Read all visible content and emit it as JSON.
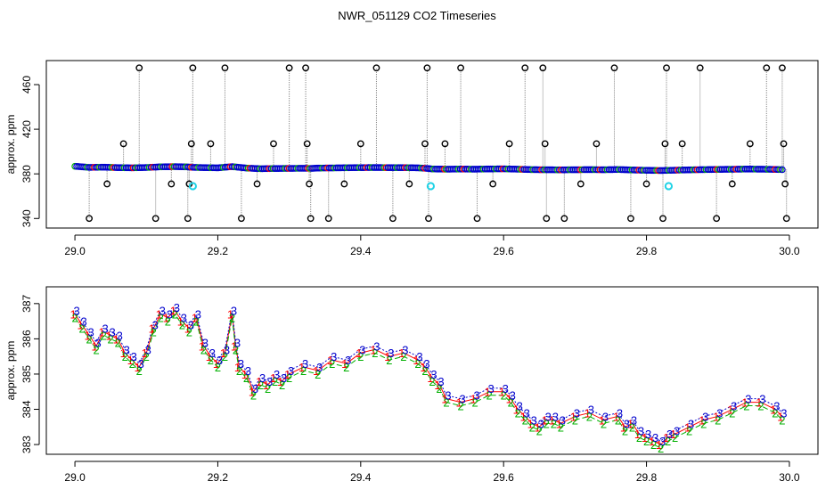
{
  "figure": {
    "title": "NWR_051129  CO2 Timeseries"
  },
  "colors": {
    "outlier": "#000000",
    "flag": "#22d3e6",
    "series1": "#ff0000",
    "series2": "#00b000",
    "series3": "#0000cc",
    "vline": "#888888"
  },
  "chart_data": [
    {
      "type": "scatter",
      "panel": "top",
      "title": "",
      "xlabel": "",
      "ylabel": "approx. ppm",
      "xlim": [
        29.0,
        30.0
      ],
      "ylim": [
        337,
        476
      ],
      "xticks": [
        29.0,
        29.2,
        29.4,
        29.6,
        29.8,
        30.0
      ],
      "xtick_labels": [
        "29.0",
        "29.2",
        "29.4",
        "29.6",
        "29.8",
        "30.0"
      ],
      "yticks": [
        340,
        380,
        420,
        460
      ],
      "ytick_labels": [
        "340",
        "380",
        "420",
        "460"
      ],
      "grid": false,
      "baseline_series": {
        "marker": "o",
        "x": [
          29.0,
          29.02,
          29.04,
          29.06,
          29.08,
          29.1,
          29.12,
          29.14,
          29.16,
          29.162,
          29.18,
          29.2,
          29.22,
          29.24,
          29.26,
          29.28,
          29.3,
          29.32,
          29.332,
          29.34,
          29.36,
          29.38,
          29.4,
          29.42,
          29.44,
          29.46,
          29.48,
          29.495,
          29.5,
          29.52,
          29.54,
          29.56,
          29.58,
          29.6,
          29.62,
          29.64,
          29.655,
          29.66,
          29.68,
          29.7,
          29.72,
          29.74,
          29.76,
          29.78,
          29.8,
          29.82,
          29.828,
          29.84,
          29.86,
          29.88,
          29.9,
          29.92,
          29.94,
          29.96,
          29.98,
          29.99
        ],
        "y": [
          386.8,
          385.8,
          386.0,
          385.6,
          385.4,
          385.7,
          386.3,
          386.5,
          386.2,
          385.9,
          385.6,
          385.4,
          386.5,
          385.2,
          384.6,
          384.8,
          384.9,
          385.0,
          384.9,
          385.2,
          385.3,
          385.5,
          385.6,
          385.7,
          385.6,
          385.6,
          385.4,
          384.8,
          384.4,
          384.2,
          384.3,
          384.2,
          384.4,
          384.5,
          384.2,
          383.8,
          383.7,
          383.7,
          383.6,
          383.7,
          383.8,
          383.7,
          383.9,
          383.5,
          383.2,
          383.0,
          383.1,
          383.3,
          383.6,
          383.8,
          384.0,
          384.1,
          384.3,
          384.2,
          384.0,
          383.8
        ]
      },
      "outliers": {
        "marker": "o",
        "x": [
          29.02,
          29.045,
          29.068,
          29.09,
          29.113,
          29.135,
          29.158,
          29.16,
          29.163,
          29.165,
          29.19,
          29.21,
          29.233,
          29.255,
          29.278,
          29.3,
          29.323,
          29.325,
          29.328,
          29.33,
          29.355,
          29.377,
          29.4,
          29.422,
          29.445,
          29.468,
          29.49,
          29.493,
          29.495,
          29.518,
          29.54,
          29.563,
          29.585,
          29.608,
          29.63,
          29.655,
          29.658,
          29.66,
          29.685,
          29.708,
          29.73,
          29.755,
          29.778,
          29.8,
          29.823,
          29.826,
          29.828,
          29.85,
          29.875,
          29.898,
          29.92,
          29.945,
          29.968,
          29.99,
          29.992,
          29.994,
          29.996
        ],
        "y": [
          340,
          371,
          407,
          475,
          340,
          371,
          340,
          371,
          407,
          475,
          407,
          475,
          340,
          371,
          407,
          475,
          475,
          407,
          371,
          340,
          340,
          371,
          407,
          475,
          340,
          371,
          407,
          475,
          340,
          407,
          475,
          340,
          371,
          407,
          475,
          475,
          407,
          340,
          340,
          371,
          407,
          475,
          340,
          371,
          340,
          407,
          475,
          407,
          475,
          340,
          371,
          407,
          475,
          475,
          407,
          371,
          340
        ]
      },
      "flagged": {
        "marker": "o",
        "x": [
          29.165,
          29.498,
          29.831
        ],
        "y": [
          369,
          369,
          369
        ]
      }
    },
    {
      "type": "line",
      "panel": "bottom",
      "title": "",
      "xlabel": "",
      "ylabel": "approx. ppm",
      "xlim": [
        29.0,
        30.0
      ],
      "ylim": [
        382.9,
        387.3
      ],
      "xticks": [
        29.0,
        29.2,
        29.4,
        29.6,
        29.8,
        30.0
      ],
      "xtick_labels": [
        "29.0",
        "29.2",
        "29.4",
        "29.6",
        "29.8",
        "30.0"
      ],
      "yticks": [
        383,
        384,
        385,
        386,
        387
      ],
      "ytick_labels": [
        "383",
        "384",
        "385",
        "386",
        "387"
      ],
      "grid": false,
      "x": [
        29.0,
        29.01,
        29.02,
        29.03,
        29.04,
        29.05,
        29.06,
        29.07,
        29.08,
        29.09,
        29.1,
        29.11,
        29.12,
        29.13,
        29.14,
        29.15,
        29.16,
        29.17,
        29.18,
        29.19,
        29.2,
        29.21,
        29.22,
        29.225,
        29.23,
        29.24,
        29.25,
        29.26,
        29.27,
        29.28,
        29.29,
        29.3,
        29.32,
        29.34,
        29.36,
        29.38,
        29.4,
        29.42,
        29.44,
        29.46,
        29.48,
        29.49,
        29.5,
        29.51,
        29.52,
        29.54,
        29.56,
        29.58,
        29.6,
        29.61,
        29.62,
        29.63,
        29.64,
        29.65,
        29.66,
        29.67,
        29.68,
        29.7,
        29.72,
        29.74,
        29.76,
        29.77,
        29.78,
        29.79,
        29.8,
        29.81,
        29.82,
        29.83,
        29.84,
        29.86,
        29.88,
        29.9,
        29.92,
        29.94,
        29.96,
        29.98,
        29.99
      ],
      "series": [
        {
          "name": "1",
          "values": [
            386.7,
            386.4,
            386.1,
            385.8,
            386.2,
            386.1,
            386.0,
            385.6,
            385.4,
            385.2,
            385.6,
            386.3,
            386.7,
            386.6,
            386.8,
            386.5,
            386.3,
            386.6,
            385.8,
            385.5,
            385.3,
            385.6,
            386.7,
            385.8,
            385.2,
            385.0,
            384.5,
            384.8,
            384.7,
            384.9,
            384.8,
            385.0,
            385.2,
            385.1,
            385.4,
            385.3,
            385.6,
            385.7,
            385.5,
            385.6,
            385.4,
            385.2,
            384.9,
            384.7,
            384.3,
            384.2,
            384.3,
            384.5,
            384.5,
            384.3,
            384.0,
            383.8,
            383.6,
            383.5,
            383.7,
            383.7,
            383.6,
            383.8,
            383.9,
            383.7,
            383.8,
            383.5,
            383.6,
            383.3,
            383.2,
            383.1,
            383.0,
            383.2,
            383.3,
            383.5,
            383.7,
            383.8,
            384.0,
            384.2,
            384.2,
            384.0,
            383.8
          ]
        },
        {
          "name": "2",
          "values": [
            386.6,
            386.3,
            386.0,
            385.7,
            386.1,
            386.0,
            385.9,
            385.5,
            385.3,
            385.1,
            385.5,
            386.2,
            386.6,
            386.5,
            386.7,
            386.4,
            386.2,
            386.5,
            385.7,
            385.4,
            385.2,
            385.5,
            386.6,
            385.7,
            385.1,
            384.9,
            384.4,
            384.7,
            384.6,
            384.8,
            384.7,
            384.9,
            385.1,
            385.0,
            385.3,
            385.2,
            385.5,
            385.6,
            385.4,
            385.5,
            385.3,
            385.1,
            384.8,
            384.6,
            384.2,
            384.1,
            384.2,
            384.4,
            384.4,
            384.2,
            383.9,
            383.7,
            383.5,
            383.4,
            383.6,
            383.6,
            383.5,
            383.7,
            383.8,
            383.6,
            383.7,
            383.4,
            383.5,
            383.2,
            383.1,
            383.0,
            382.9,
            383.1,
            383.2,
            383.4,
            383.6,
            383.7,
            383.9,
            384.1,
            384.1,
            383.9,
            383.7
          ]
        },
        {
          "name": "3",
          "values": [
            386.8,
            386.5,
            386.2,
            385.9,
            386.3,
            386.2,
            386.1,
            385.7,
            385.5,
            385.3,
            385.7,
            386.4,
            386.8,
            386.7,
            386.9,
            386.6,
            386.4,
            386.7,
            385.9,
            385.6,
            385.4,
            385.7,
            386.8,
            385.9,
            385.3,
            385.1,
            384.6,
            384.9,
            384.8,
            385.0,
            384.9,
            385.1,
            385.3,
            385.2,
            385.5,
            385.4,
            385.7,
            385.8,
            385.6,
            385.7,
            385.5,
            385.3,
            385.0,
            384.8,
            384.4,
            384.3,
            384.4,
            384.6,
            384.6,
            384.4,
            384.1,
            383.9,
            383.7,
            383.6,
            383.8,
            383.8,
            383.7,
            383.9,
            384.0,
            383.8,
            383.9,
            383.6,
            383.7,
            383.4,
            383.3,
            383.2,
            383.1,
            383.3,
            383.4,
            383.6,
            383.8,
            383.9,
            384.1,
            384.3,
            384.3,
            384.1,
            383.9
          ]
        }
      ]
    }
  ]
}
